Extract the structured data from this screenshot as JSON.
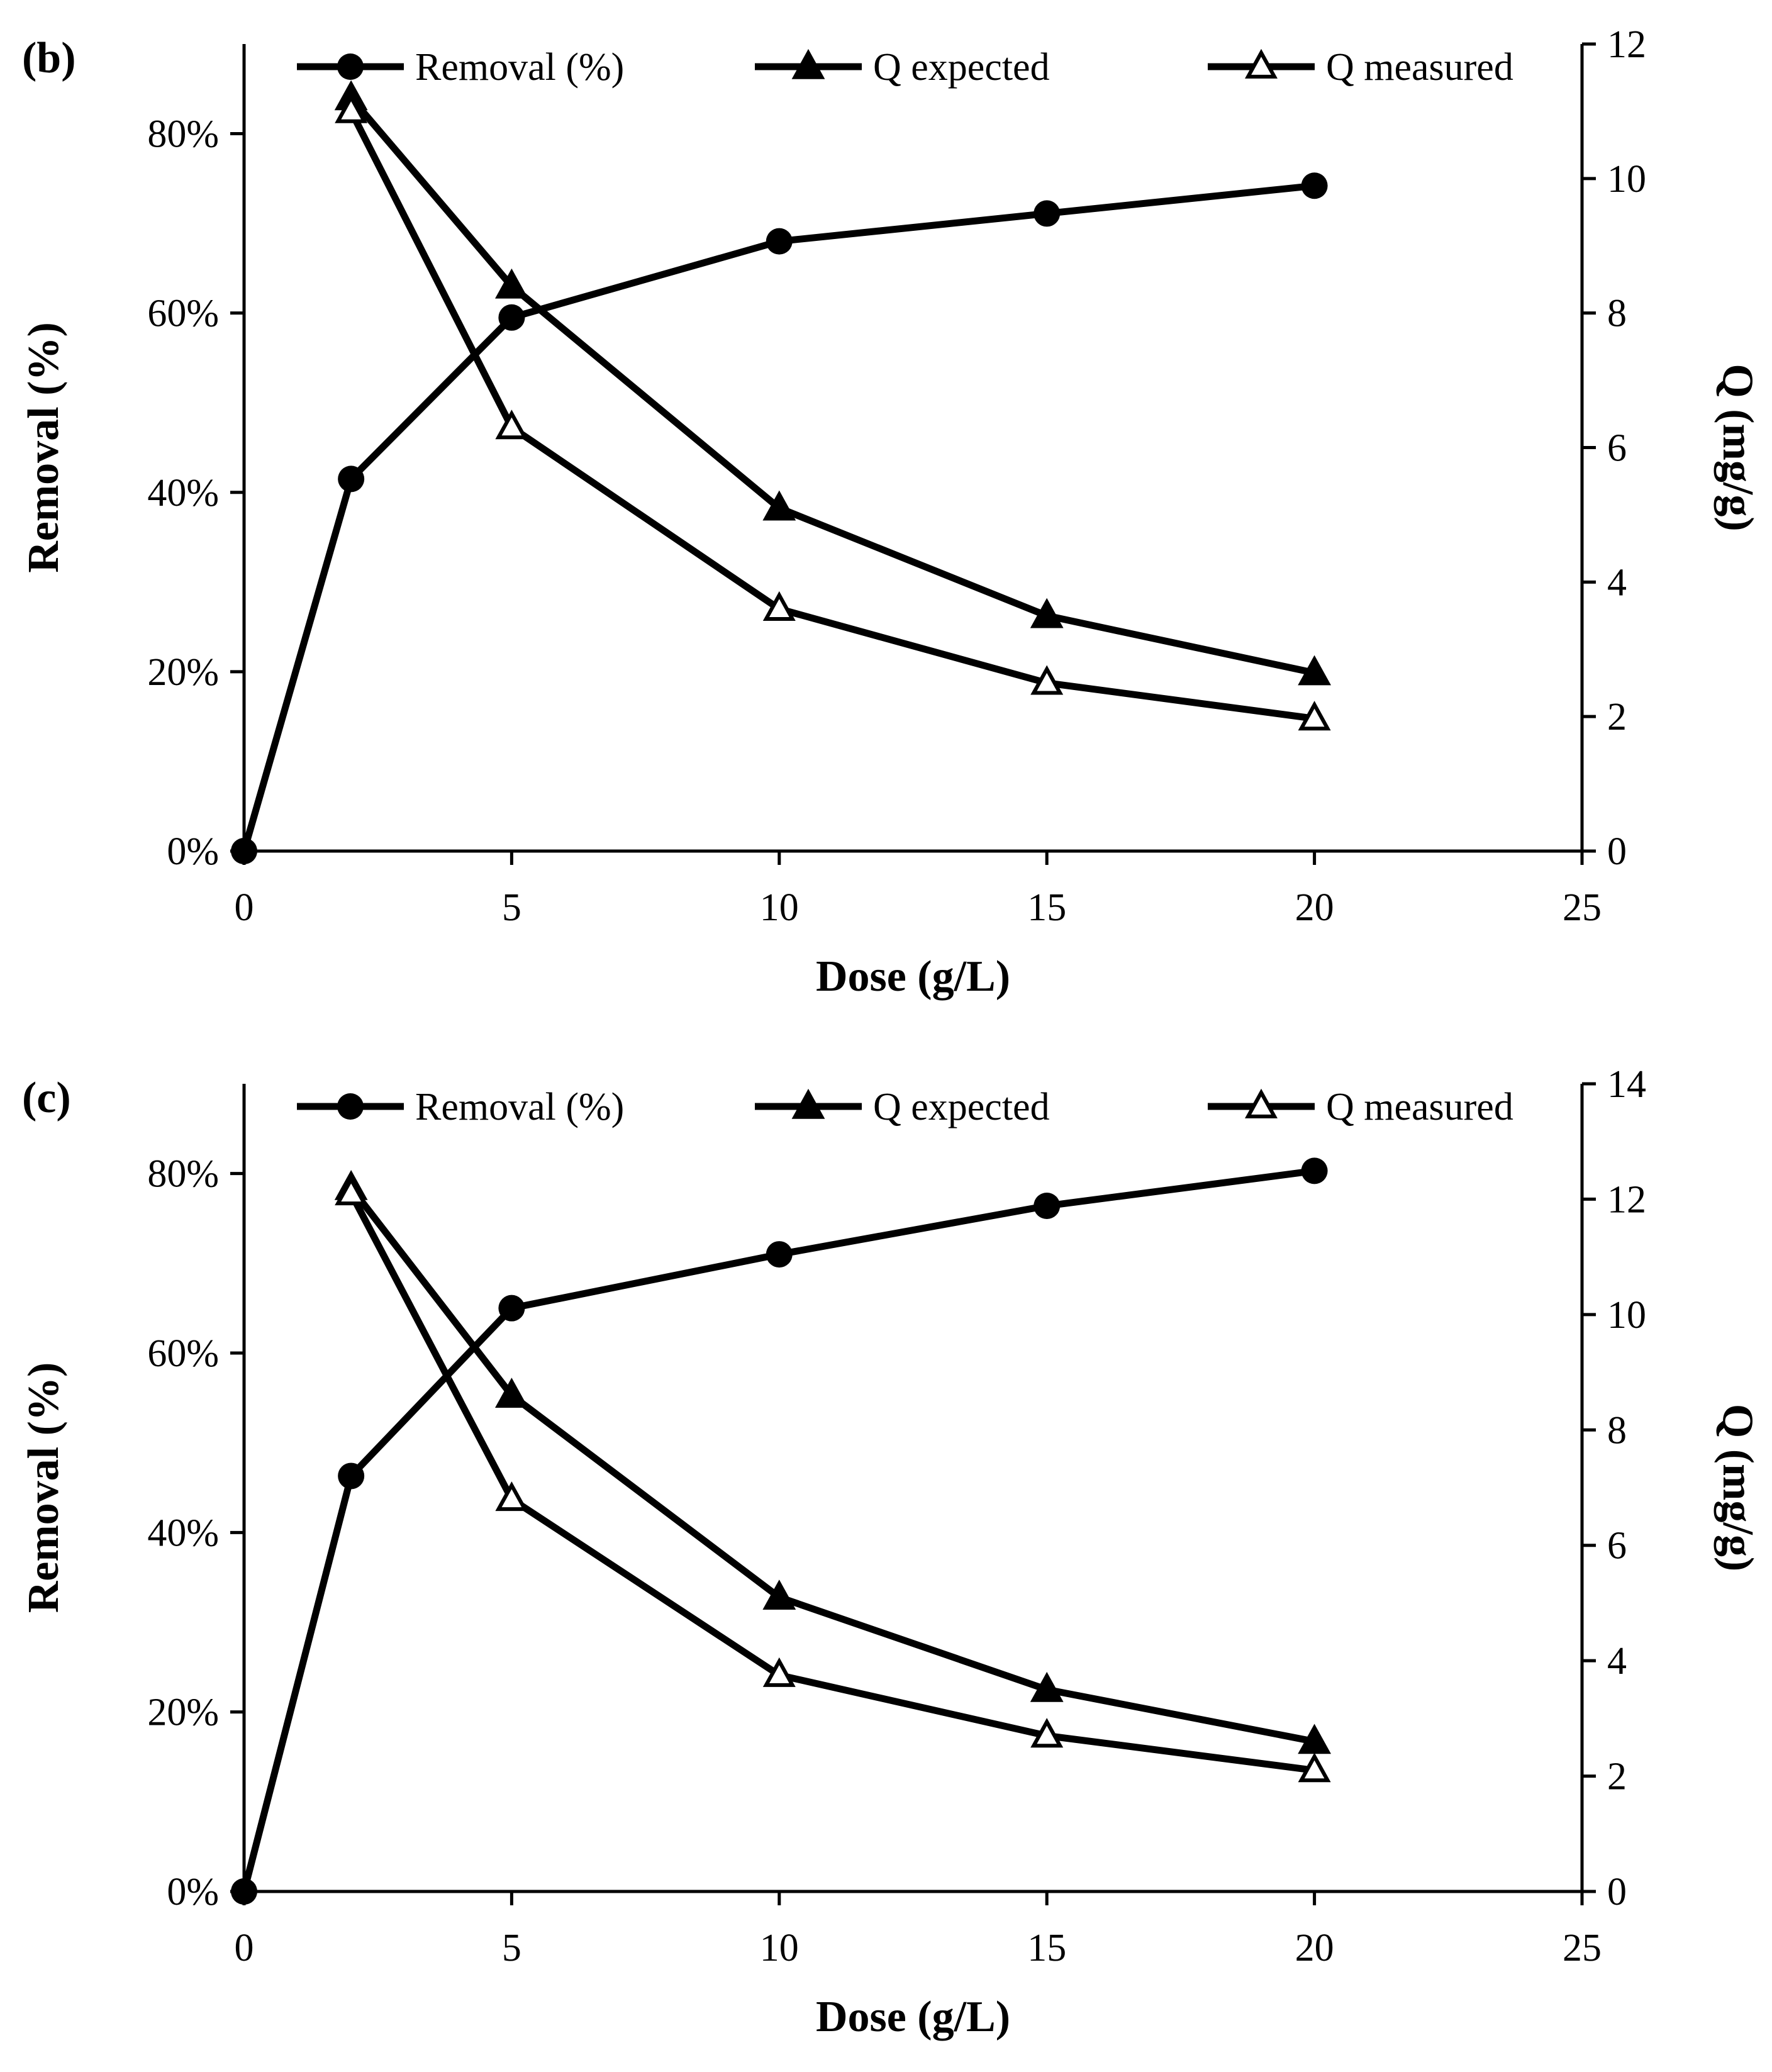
{
  "chart_data": [
    {
      "type": "line",
      "panel_label": "(b)",
      "xlabel": "Dose (g/L)",
      "ylabel": "Removal (%)",
      "y2label": "Q (mg/g)",
      "xlim": [
        0,
        25
      ],
      "ylim": [
        0,
        0.9
      ],
      "y2lim": [
        0,
        12
      ],
      "xticks": [
        "0",
        "5",
        "10",
        "15",
        "20",
        "25"
      ],
      "yticks": [
        "0%",
        "20%",
        "40%",
        "60%",
        "80%"
      ],
      "y2ticks": [
        "0",
        "2",
        "4",
        "6",
        "8",
        "10",
        "12"
      ],
      "legend_position": "top",
      "grid": false,
      "series": [
        {
          "name": "Removal (%)",
          "axis": "left",
          "marker": "circle",
          "x": [
            0,
            2,
            5,
            10,
            15,
            20
          ],
          "values": [
            0,
            0.415,
            0.595,
            0.68,
            0.711,
            0.742
          ]
        },
        {
          "name": "Q expected",
          "axis": "right",
          "marker": "triangle-filled",
          "x": [
            2,
            5,
            10,
            15,
            20
          ],
          "values": [
            11.2,
            8.4,
            5.1,
            3.5,
            2.65
          ]
        },
        {
          "name": "Q measured",
          "axis": "right",
          "marker": "triangle-open",
          "x": [
            2,
            5,
            10,
            15,
            20
          ],
          "values": [
            11.0,
            6.3,
            3.6,
            2.5,
            1.97
          ]
        }
      ]
    },
    {
      "type": "line",
      "panel_label": "(c)",
      "xlabel": "Dose (g/L)",
      "ylabel": "Removal (%)",
      "y2label": "Q (mg/g)",
      "xlim": [
        0,
        25
      ],
      "ylim": [
        0,
        0.9
      ],
      "y2lim": [
        0,
        14
      ],
      "xticks": [
        "0",
        "5",
        "10",
        "15",
        "20",
        "25"
      ],
      "yticks": [
        "0%",
        "20%",
        "40%",
        "60%",
        "80%"
      ],
      "y2ticks": [
        "0",
        "2",
        "4",
        "6",
        "8",
        "10",
        "12",
        "14"
      ],
      "legend_position": "top",
      "grid": false,
      "series": [
        {
          "name": "Removal (%)",
          "axis": "left",
          "marker": "circle",
          "x": [
            0,
            2,
            5,
            10,
            15,
            20
          ],
          "values": [
            0,
            0.463,
            0.65,
            0.71,
            0.764,
            0.803
          ]
        },
        {
          "name": "Q expected",
          "axis": "right",
          "marker": "triangle-filled",
          "x": [
            2,
            5,
            10,
            15,
            20
          ],
          "values": [
            12.2,
            8.6,
            5.1,
            3.5,
            2.6
          ]
        },
        {
          "name": "Q measured",
          "axis": "right",
          "marker": "triangle-open",
          "x": [
            2,
            5,
            10,
            15,
            20
          ],
          "values": [
            12.1,
            6.8,
            3.75,
            2.7,
            2.1
          ]
        }
      ]
    }
  ]
}
